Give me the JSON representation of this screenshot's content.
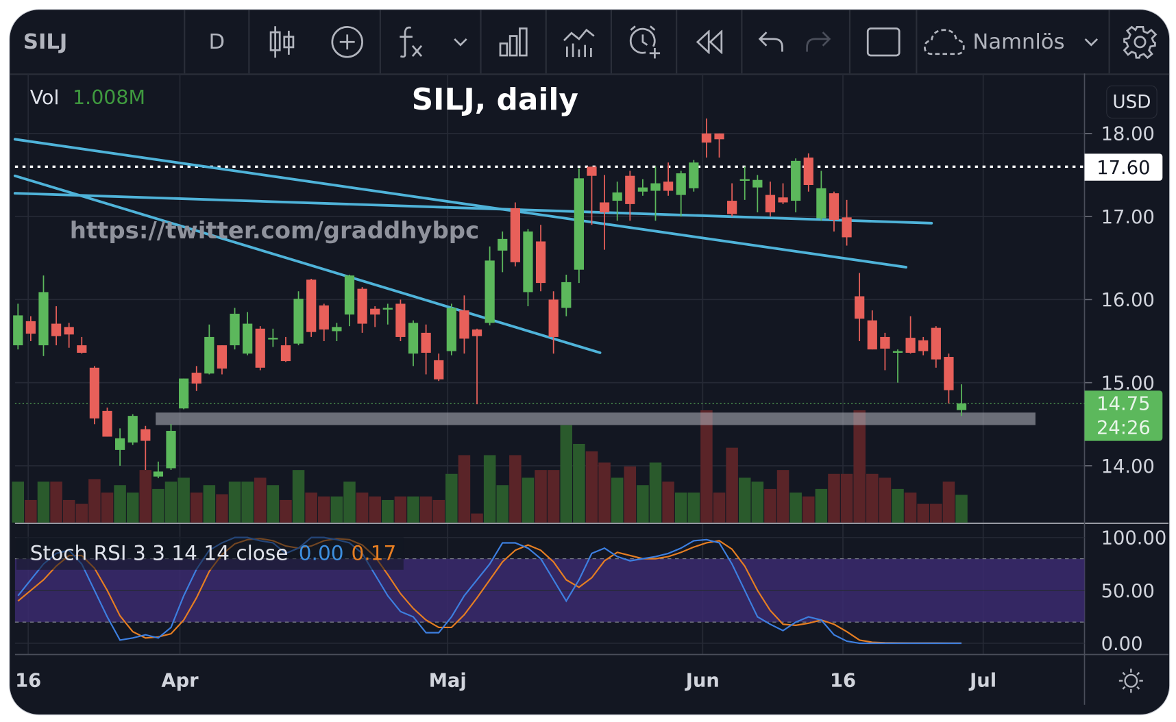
{
  "toolbar": {
    "symbol": "SILJ",
    "interval": "D",
    "layout_name": "Namnlös",
    "icons": [
      "candlestick-icon",
      "add-compare-icon",
      "indicators-fx-icon",
      "chevron-down-icon",
      "financials-bar-icon",
      "templates-icon",
      "alert-clock-icon",
      "replay-rewind-icon",
      "undo-icon",
      "redo-icon",
      "fullscreen-square-icon",
      "cloud-save-icon",
      "chevron-down-icon",
      "settings-gear-icon"
    ]
  },
  "legend": {
    "vol_label": "Vol",
    "vol_value": "1.008M",
    "stoch_label": "Stoch RSI 3 3 14 14 close",
    "stoch_k_value": "0.00",
    "stoch_d_value": "0.17"
  },
  "price_axis": {
    "currency": "USD",
    "line_label": "17.60",
    "last_price": "14.75",
    "countdown": "24:26"
  },
  "colors": {
    "up": "#5cb85c",
    "down": "#e8605a",
    "vol_up": "#2a5a2c",
    "vol_down": "#5a2428",
    "trendline": "#4fb3d9",
    "stoch_k": "#3d7fe0",
    "stoch_d": "#e67e22",
    "band": "#3b2a6e",
    "last_price_bg": "#5cb85c"
  },
  "chart_data": {
    "type": "candlestick",
    "title": "SILJ, daily",
    "watermark": "https://twitter.com/graddhybpc",
    "ylim": [
      13.3,
      18.5
    ],
    "yticks": [
      "18.00",
      "17.00",
      "16.00",
      "15.00",
      "14.00"
    ],
    "ytick_values": [
      18,
      17,
      16,
      15,
      14
    ],
    "xticks": [
      {
        "label": "16",
        "index": 0.8
      },
      {
        "label": "Apr",
        "index": 12.7
      },
      {
        "label": "Maj",
        "index": 33.7
      },
      {
        "label": "Jun",
        "index": 53.7
      },
      {
        "label": "16",
        "index": 64.7
      },
      {
        "label": "Jul",
        "index": 75.7
      }
    ],
    "ohlc_fields": [
      "open",
      "high",
      "low",
      "close"
    ],
    "candles": [
      [
        15.45,
        15.95,
        15.4,
        15.81
      ],
      [
        15.74,
        15.8,
        15.5,
        15.59
      ],
      [
        15.45,
        16.29,
        15.32,
        16.09
      ],
      [
        15.71,
        15.92,
        15.45,
        15.56
      ],
      [
        15.67,
        15.72,
        15.42,
        15.58
      ],
      [
        15.45,
        15.55,
        15.35,
        15.36
      ],
      [
        15.18,
        15.2,
        14.5,
        14.57
      ],
      [
        14.66,
        14.7,
        14.35,
        14.35
      ],
      [
        14.19,
        14.45,
        14.0,
        14.33
      ],
      [
        14.28,
        14.62,
        14.25,
        14.6
      ],
      [
        14.44,
        14.48,
        13.95,
        14.3
      ],
      [
        13.87,
        14.05,
        13.85,
        13.93
      ],
      [
        13.97,
        14.5,
        13.95,
        14.42
      ],
      [
        14.69,
        15.05,
        14.68,
        15.05
      ],
      [
        15.12,
        15.2,
        14.9,
        14.99
      ],
      [
        15.11,
        15.7,
        15.1,
        15.55
      ],
      [
        15.45,
        15.45,
        15.1,
        15.17
      ],
      [
        15.45,
        15.9,
        15.4,
        15.83
      ],
      [
        15.35,
        15.85,
        15.33,
        15.71
      ],
      [
        15.65,
        15.68,
        15.15,
        15.18
      ],
      [
        15.52,
        15.65,
        15.43,
        15.54
      ],
      [
        15.45,
        15.55,
        15.25,
        15.26
      ],
      [
        15.47,
        16.1,
        15.45,
        16.01
      ],
      [
        16.24,
        16.25,
        15.55,
        15.61
      ],
      [
        15.93,
        15.95,
        15.5,
        15.64
      ],
      [
        15.62,
        15.72,
        15.5,
        15.67
      ],
      [
        15.82,
        16.3,
        15.68,
        16.29
      ],
      [
        16.13,
        16.15,
        15.6,
        15.71
      ],
      [
        15.89,
        15.92,
        15.67,
        15.82
      ],
      [
        15.88,
        15.95,
        15.7,
        15.9
      ],
      [
        15.95,
        16.0,
        15.5,
        15.55
      ],
      [
        15.35,
        15.75,
        15.2,
        15.72
      ],
      [
        15.6,
        15.7,
        15.1,
        15.36
      ],
      [
        15.27,
        15.35,
        15.02,
        15.04
      ],
      [
        15.38,
        15.95,
        15.33,
        15.9
      ],
      [
        15.87,
        16.05,
        15.35,
        15.53
      ],
      [
        15.64,
        15.65,
        14.74,
        15.56
      ],
      [
        15.72,
        16.64,
        15.69,
        16.47
      ],
      [
        16.59,
        16.82,
        16.33,
        16.73
      ],
      [
        17.1,
        17.17,
        16.4,
        16.45
      ],
      [
        16.09,
        16.85,
        15.92,
        16.82
      ],
      [
        16.7,
        16.9,
        16.1,
        16.2
      ],
      [
        16.0,
        16.1,
        15.35,
        15.55
      ],
      [
        15.9,
        16.3,
        15.8,
        16.21
      ],
      [
        16.36,
        17.58,
        16.2,
        17.46
      ],
      [
        17.6,
        17.6,
        16.9,
        17.49
      ],
      [
        17.17,
        17.5,
        16.6,
        17.05
      ],
      [
        17.19,
        17.42,
        16.95,
        17.29
      ],
      [
        17.49,
        17.55,
        16.95,
        17.15
      ],
      [
        17.3,
        17.45,
        17.25,
        17.35
      ],
      [
        17.31,
        17.6,
        16.95,
        17.4
      ],
      [
        17.42,
        17.65,
        17.25,
        17.31
      ],
      [
        17.26,
        17.55,
        17.0,
        17.52
      ],
      [
        17.34,
        17.68,
        17.3,
        17.65
      ],
      [
        18.0,
        18.18,
        17.71,
        17.89
      ],
      [
        18.0,
        18.0,
        17.71,
        17.93
      ],
      [
        17.19,
        17.4,
        17.0,
        17.03
      ],
      [
        17.43,
        17.6,
        17.2,
        17.45
      ],
      [
        17.35,
        17.5,
        17.05,
        17.44
      ],
      [
        17.26,
        17.42,
        17.0,
        17.05
      ],
      [
        17.23,
        17.4,
        17.15,
        17.17
      ],
      [
        17.19,
        17.7,
        17.05,
        17.67
      ],
      [
        17.71,
        17.76,
        17.3,
        17.38
      ],
      [
        16.98,
        17.55,
        16.95,
        17.34
      ],
      [
        17.28,
        17.3,
        16.82,
        16.96
      ],
      [
        16.99,
        17.2,
        16.65,
        16.75
      ],
      [
        16.04,
        16.32,
        15.5,
        15.77
      ],
      [
        15.75,
        15.87,
        15.4,
        15.4
      ],
      [
        15.55,
        15.6,
        15.15,
        15.41
      ],
      [
        15.36,
        15.4,
        15.0,
        15.38
      ],
      [
        15.54,
        15.8,
        15.35,
        15.36
      ],
      [
        15.51,
        15.55,
        15.33,
        15.38
      ],
      [
        15.66,
        15.68,
        15.18,
        15.28
      ],
      [
        15.31,
        15.35,
        14.75,
        14.91
      ],
      [
        14.67,
        14.98,
        14.6,
        14.75
      ]
    ],
    "volume_millions": [
      1.49,
      0.82,
      1.49,
      1.49,
      0.82,
      0.68,
      1.58,
      1.09,
      1.36,
      1.09,
      1.91,
      1.22,
      1.49,
      1.63,
      1.09,
      1.36,
      1.03,
      1.49,
      1.49,
      1.63,
      1.36,
      0.82,
      1.91,
      1.09,
      0.95,
      0.95,
      1.49,
      1.09,
      0.95,
      0.82,
      0.95,
      0.95,
      0.95,
      0.82,
      1.77,
      2.45,
      0.33,
      2.45,
      1.36,
      2.45,
      1.63,
      1.91,
      1.91,
      3.54,
      2.86,
      2.59,
      2.18,
      1.63,
      2.04,
      1.36,
      2.18,
      1.49,
      1.09,
      1.09,
      4.08,
      1.09,
      2.72,
      1.63,
      1.49,
      1.22,
      1.91,
      1.09,
      0.95,
      1.22,
      1.77,
      1.77,
      4.08,
      1.77,
      1.63,
      1.22,
      1.09,
      0.68,
      0.68,
      1.49,
      1.008
    ],
    "horizontal_line": 17.6,
    "last_price": 14.75,
    "support_zone": {
      "from_index": 10.8,
      "to_index": 79.8,
      "low": 14.49,
      "high": 14.64
    },
    "trendlines": [
      {
        "i1": -0.24,
        "p1": 17.93,
        "i2": 69.65,
        "p2": 16.39
      },
      {
        "i1": -0.24,
        "p1": 17.28,
        "i2": 71.65,
        "p2": 16.92
      },
      {
        "i1": -0.24,
        "p1": 17.49,
        "i2": 45.65,
        "p2": 15.36
      }
    ],
    "stoch": {
      "ylim": [
        0,
        100
      ],
      "yticks": [
        "100.00",
        "50.00",
        "0.00"
      ],
      "ytick_values": [
        100,
        50,
        0
      ],
      "band": [
        20,
        80
      ],
      "k": [
        45,
        60,
        75,
        85,
        88,
        75,
        50,
        25,
        3,
        5,
        8,
        5,
        15,
        45,
        70,
        88,
        95,
        100,
        100,
        97,
        95,
        85,
        90,
        100,
        100,
        98,
        95,
        85,
        65,
        45,
        30,
        25,
        10,
        10,
        25,
        45,
        60,
        75,
        95,
        95,
        90,
        80,
        60,
        40,
        60,
        85,
        90,
        82,
        78,
        80,
        82,
        85,
        90,
        97,
        98,
        95,
        75,
        50,
        25,
        18,
        12,
        20,
        25,
        22,
        8,
        2,
        0,
        0,
        0,
        0,
        0,
        0,
        0,
        0,
        0
      ],
      "d": [
        40,
        50,
        60,
        73,
        83,
        83,
        71,
        50,
        26,
        11,
        5,
        6,
        9,
        22,
        43,
        68,
        84,
        94,
        98,
        99,
        97,
        92,
        90,
        92,
        97,
        99,
        98,
        93,
        82,
        65,
        47,
        33,
        22,
        15,
        15,
        27,
        43,
        60,
        77,
        88,
        93,
        88,
        77,
        60,
        53,
        62,
        78,
        86,
        83,
        80,
        80,
        82,
        86,
        91,
        95,
        97,
        89,
        73,
        50,
        31,
        18,
        17,
        19,
        22,
        18,
        11,
        3,
        1,
        0.5,
        0.3,
        0.2,
        0.2,
        0.2,
        0.17,
        0.17
      ]
    }
  }
}
